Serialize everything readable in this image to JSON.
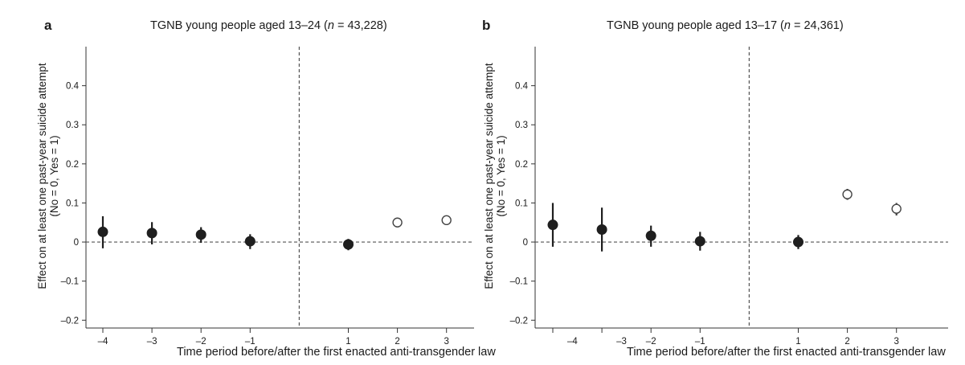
{
  "chart_data": [
    {
      "type": "scatter",
      "panel_label": "a",
      "title_prefix": "TGNB young people aged 13–24 (",
      "title_n_label": "n",
      "title_suffix": " = 43,228)",
      "xlabel": "Time period before/after the first enacted anti-transgender law",
      "ylabel_line1": "Effect on at least one past-year suicide attempt",
      "ylabel_line2": "(No = 0, Yes = 1)",
      "ylim": [
        -0.22,
        0.5
      ],
      "yticks": [
        {
          "value": 0.4,
          "label": "0.4"
        },
        {
          "value": 0.3,
          "label": "0.3"
        },
        {
          "value": 0.2,
          "label": "0.2"
        },
        {
          "value": 0.1,
          "label": "0.1"
        },
        {
          "value": 0.0,
          "label": "0"
        },
        {
          "value": -0.1,
          "label": "–0.1"
        },
        {
          "value": -0.2,
          "label": "–0.2"
        }
      ],
      "xticks": [
        {
          "pos": 1,
          "label": "–4"
        },
        {
          "pos": 2,
          "label": "–3"
        },
        {
          "pos": 3,
          "label": "–2"
        },
        {
          "pos": 4,
          "label": "–1"
        },
        {
          "pos": 6,
          "label": "1"
        },
        {
          "pos": 7,
          "label": "2"
        },
        {
          "pos": 8,
          "label": "3"
        }
      ],
      "vline_pos": 5,
      "hline_y": 0,
      "points": [
        {
          "pos": 1,
          "y": 0.026,
          "lo": -0.016,
          "hi": 0.066,
          "filled": true
        },
        {
          "pos": 2,
          "y": 0.023,
          "lo": -0.006,
          "hi": 0.051,
          "filled": true
        },
        {
          "pos": 3,
          "y": 0.019,
          "lo": -0.002,
          "hi": 0.038,
          "filled": true
        },
        {
          "pos": 4,
          "y": 0.002,
          "lo": -0.018,
          "hi": 0.02,
          "filled": true
        },
        {
          "pos": 6,
          "y": -0.006,
          "lo": -0.021,
          "hi": 0.008,
          "filled": true
        },
        {
          "pos": 7,
          "y": 0.05,
          "lo": 0.042,
          "hi": 0.058,
          "filled": false
        },
        {
          "pos": 8,
          "y": 0.056,
          "lo": 0.046,
          "hi": 0.066,
          "filled": false
        }
      ]
    },
    {
      "type": "scatter",
      "panel_label": "b",
      "title_prefix": "TGNB young people aged 13–17 (",
      "title_n_label": "n",
      "title_suffix": " = 24,361)",
      "xlabel": "Time period before/after the first enacted anti-transgender law",
      "ylabel_line1": "Effect on at least one past-year suicide attempt",
      "ylabel_line2": "(No = 0, Yes = 1)",
      "ylim": [
        -0.22,
        0.5
      ],
      "yticks": [
        {
          "value": 0.4,
          "label": "0.4"
        },
        {
          "value": 0.3,
          "label": "0.3"
        },
        {
          "value": 0.2,
          "label": "0.2"
        },
        {
          "value": 0.1,
          "label": "0.1"
        },
        {
          "value": 0.0,
          "label": "0"
        },
        {
          "value": -0.1,
          "label": "–0.1"
        },
        {
          "value": -0.2,
          "label": "–0.2"
        }
      ],
      "xticks": [
        {
          "pos": 1,
          "label": ""
        },
        {
          "pos": 1.4,
          "label": "–4"
        },
        {
          "pos": 2,
          "label": ""
        },
        {
          "pos": 2.4,
          "label": "–3"
        },
        {
          "pos": 3,
          "label": "–2"
        },
        {
          "pos": 4,
          "label": "–1"
        },
        {
          "pos": 6,
          "label": "1"
        },
        {
          "pos": 7,
          "label": "2"
        },
        {
          "pos": 8,
          "label": "3"
        }
      ],
      "vline_pos": 5,
      "hline_y": 0,
      "points": [
        {
          "pos": 1,
          "y": 0.044,
          "lo": -0.012,
          "hi": 0.1,
          "filled": true
        },
        {
          "pos": 2,
          "y": 0.032,
          "lo": -0.024,
          "hi": 0.088,
          "filled": true
        },
        {
          "pos": 3,
          "y": 0.016,
          "lo": -0.012,
          "hi": 0.042,
          "filled": true
        },
        {
          "pos": 4,
          "y": 0.002,
          "lo": -0.022,
          "hi": 0.026,
          "filled": true
        },
        {
          "pos": 6,
          "y": 0.0,
          "lo": -0.018,
          "hi": 0.018,
          "filled": true
        },
        {
          "pos": 7,
          "y": 0.122,
          "lo": 0.108,
          "hi": 0.136,
          "filled": false
        },
        {
          "pos": 8,
          "y": 0.085,
          "lo": 0.068,
          "hi": 0.1,
          "filled": false
        }
      ]
    }
  ]
}
